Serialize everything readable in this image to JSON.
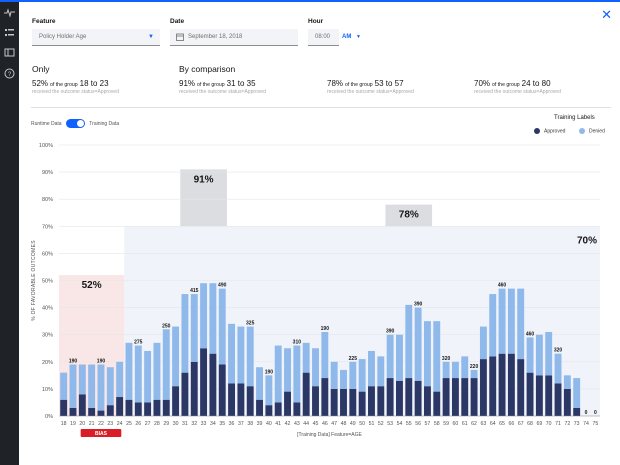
{
  "sidebar": {
    "icons": [
      "pulse-icon",
      "list-icon",
      "panel-icon",
      "help-icon"
    ]
  },
  "filters": {
    "feature": {
      "label": "Feature",
      "value": "Policy Holder Age"
    },
    "date": {
      "label": "Date",
      "value": "September 18, 2018"
    },
    "hour": {
      "label": "Hour",
      "value": "08:00",
      "ampm": "AM"
    }
  },
  "summary": {
    "only_title": "Only",
    "comparison_title": "By comparison",
    "only": {
      "percent": "52%",
      "of_group": "of the group",
      "range": "18 to 23",
      "subtitle": "received the outcome status=Approved"
    },
    "comparisons": [
      {
        "percent": "91%",
        "of_group": "of the group",
        "range": "31 to 35",
        "subtitle": "received the outcome status=Approved"
      },
      {
        "percent": "78%",
        "of_group": "of the group",
        "range": "53 to 57",
        "subtitle": "received the outcome status=Approved"
      },
      {
        "percent": "70%",
        "of_group": "of the group",
        "range": "24 to 80",
        "subtitle": "received the outcome status=Approved"
      }
    ]
  },
  "toggle": {
    "left_label": "Runtime Data",
    "right_label": "Training Data",
    "on": true
  },
  "legend": {
    "title": "Training Labels",
    "approved": "Approved",
    "denied": "Denied"
  },
  "colors": {
    "approved": "#2b3765",
    "denied": "#8fb8eb",
    "accent": "#0f62fe",
    "bias_band": "#f9e6e6",
    "bias_badge": "#da1e28",
    "highlight_band": "#d7d9dd",
    "reference_band": "#f0f3fa"
  },
  "chart_data": {
    "type": "bar",
    "stacked": true,
    "ylabel": "% OF FAVORABLE OUTCOMES",
    "xlabel": "[Training Data] Feature=AGE",
    "ylim": [
      0,
      100
    ],
    "yticks": [
      "0%",
      "10%",
      "20%",
      "30%",
      "40%",
      "50%",
      "60%",
      "70%",
      "80%",
      "90%",
      "100%"
    ],
    "categories": [
      "18",
      "19",
      "20",
      "21",
      "22",
      "23",
      "24",
      "25",
      "26",
      "27",
      "28",
      "29",
      "30",
      "31",
      "32",
      "33",
      "34",
      "35",
      "36",
      "37",
      "38",
      "39",
      "40",
      "41",
      "42",
      "43",
      "44",
      "45",
      "46",
      "47",
      "48",
      "49",
      "50",
      "51",
      "52",
      "53",
      "54",
      "55",
      "56",
      "57",
      "58",
      "59",
      "60",
      "61",
      "62",
      "63",
      "64",
      "65",
      "66",
      "67",
      "68",
      "69",
      "70",
      "71",
      "72",
      "73",
      "74",
      "75"
    ],
    "series": [
      {
        "name": "Approved",
        "values": [
          6,
          3,
          8,
          3,
          2,
          4,
          7,
          6,
          5,
          5,
          6,
          6,
          11,
          16,
          20,
          25,
          23,
          19,
          12,
          12,
          11,
          6,
          4,
          5,
          9,
          5,
          16,
          11,
          14,
          10,
          10,
          10,
          9,
          11,
          11,
          14,
          13,
          14,
          13,
          11,
          9,
          14,
          14,
          14,
          14,
          21,
          22,
          23,
          23,
          21,
          16,
          15,
          15,
          12,
          10,
          3,
          0,
          0
        ]
      },
      {
        "name": "Denied",
        "values": [
          10,
          16,
          11,
          16,
          17,
          14,
          13,
          21,
          21,
          19,
          21,
          26,
          22,
          29,
          25,
          24,
          26,
          28,
          22,
          21,
          22,
          12,
          11,
          21,
          16,
          21,
          11,
          14,
          17,
          10,
          7,
          10,
          12,
          13,
          11,
          16,
          17,
          27,
          27,
          24,
          26,
          6,
          6,
          8,
          3,
          12,
          23,
          24,
          24,
          26,
          13,
          15,
          16,
          11,
          5,
          11,
          0,
          0
        ]
      }
    ],
    "data_labels": [
      {
        "category": "19",
        "label": "190"
      },
      {
        "category": "22",
        "label": "190"
      },
      {
        "category": "26",
        "label": "275"
      },
      {
        "category": "29",
        "label": "250"
      },
      {
        "category": "32",
        "label": "415"
      },
      {
        "category": "35",
        "label": "490"
      },
      {
        "category": "38",
        "label": "325"
      },
      {
        "category": "40",
        "label": "190"
      },
      {
        "category": "43",
        "label": "310"
      },
      {
        "category": "46",
        "label": "190"
      },
      {
        "category": "49",
        "label": "225"
      },
      {
        "category": "53",
        "label": "390"
      },
      {
        "category": "56",
        "label": "390"
      },
      {
        "category": "59",
        "label": "320"
      },
      {
        "category": "62",
        "label": "220"
      },
      {
        "category": "65",
        "label": "460"
      },
      {
        "category": "68",
        "label": "460"
      },
      {
        "category": "71",
        "label": "320"
      },
      {
        "category": "74",
        "label": "0"
      },
      {
        "category": "75",
        "label": "0"
      }
    ],
    "bands": [
      {
        "from": "18",
        "to": "24",
        "label": "52%",
        "level": 52,
        "kind": "bias"
      },
      {
        "from": "31",
        "to": "35",
        "label": "91%",
        "level": 91,
        "kind": "highlight"
      },
      {
        "from": "53",
        "to": "57",
        "label": "78%",
        "level": 78,
        "kind": "highlight"
      },
      {
        "from": "25",
        "to": "75",
        "label": "70%",
        "level": 70,
        "kind": "reference"
      }
    ],
    "bias_badge": {
      "label": "BIAS",
      "from": "20",
      "to": "24"
    },
    "grid": true,
    "legend_position": "top-right"
  }
}
